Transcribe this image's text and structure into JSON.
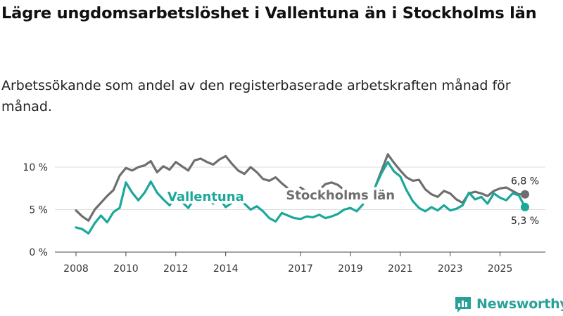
{
  "title": "Lägre ungdomsarbetslöshet i Vallentuna än i Stockholms län",
  "subtitle": "Arbetssökande som andel av den registerbaserade arbetskraften månad för månad.",
  "logo_text": "Newsworthy",
  "colors": {
    "vallentuna": "#1aa89a",
    "stockholm": "#6e6e6e",
    "grid": "#dddddd",
    "axis": "#333333"
  },
  "chart_data": {
    "type": "line",
    "title": "Lägre ungdomsarbetslöshet i Vallentuna än i Stockholms län",
    "xlabel": "",
    "ylabel": "",
    "xlim": [
      2008,
      2026.8
    ],
    "ylim": [
      0,
      12
    ],
    "x_ticks": [
      2008,
      2010,
      2012,
      2014,
      2017,
      2019,
      2021,
      2023,
      2025
    ],
    "y_ticks": [
      {
        "value": 0,
        "label": "0 %"
      },
      {
        "value": 5,
        "label": "5 %"
      },
      {
        "value": 10,
        "label": "10 %"
      }
    ],
    "series": [
      {
        "name": "Stockholms län",
        "label_text": "Stockholms län",
        "end_label": "6,8 %",
        "x": [
          2008.0,
          2008.25,
          2008.5,
          2008.75,
          2009.0,
          2009.25,
          2009.5,
          2009.75,
          2010.0,
          2010.25,
          2010.5,
          2010.75,
          2011.0,
          2011.25,
          2011.5,
          2011.75,
          2012.0,
          2012.25,
          2012.5,
          2012.75,
          2013.0,
          2013.25,
          2013.5,
          2013.75,
          2014.0,
          2014.25,
          2014.5,
          2014.75,
          2015.0,
          2015.25,
          2015.5,
          2015.75,
          2016.0,
          2016.25,
          2016.5,
          2016.75,
          2017.0,
          2017.25,
          2017.5,
          2017.75,
          2018.0,
          2018.25,
          2018.5,
          2018.75,
          2019.0,
          2019.25,
          2019.5,
          2019.75,
          2020.0,
          2020.25,
          2020.5,
          2020.75,
          2021.0,
          2021.25,
          2021.5,
          2021.75,
          2022.0,
          2022.25,
          2022.5,
          2022.75,
          2023.0,
          2023.25,
          2023.5,
          2023.75,
          2024.0,
          2024.25,
          2024.5,
          2024.75,
          2025.0,
          2025.25,
          2025.5,
          2025.75,
          2026.0
        ],
        "values": [
          4.9,
          4.2,
          3.7,
          5.0,
          5.8,
          6.6,
          7.3,
          9.0,
          9.9,
          9.6,
          10.0,
          10.2,
          10.7,
          9.4,
          10.1,
          9.7,
          10.6,
          10.1,
          9.6,
          10.8,
          11.0,
          10.6,
          10.3,
          10.9,
          11.3,
          10.4,
          9.6,
          9.2,
          10.0,
          9.4,
          8.6,
          8.4,
          8.8,
          8.1,
          7.5,
          6.7,
          7.6,
          7.1,
          6.5,
          7.3,
          8.0,
          8.2,
          7.9,
          7.3,
          6.6,
          6.1,
          7.2,
          null,
          7.7,
          9.6,
          11.5,
          10.5,
          9.6,
          8.8,
          8.4,
          8.5,
          7.4,
          6.8,
          6.5,
          7.2,
          6.9,
          6.2,
          5.8,
          6.9,
          7.1,
          6.9,
          6.6,
          7.2,
          7.5,
          7.6,
          7.2,
          6.8,
          6.8
        ]
      },
      {
        "name": "Vallentuna",
        "label_text": "Vallentuna",
        "end_label": "5,3 %",
        "x": [
          2008.0,
          2008.25,
          2008.5,
          2008.75,
          2009.0,
          2009.25,
          2009.5,
          2009.75,
          2010.0,
          2010.25,
          2010.5,
          2010.75,
          2011.0,
          2011.25,
          2011.5,
          2011.75,
          2012.0,
          2012.25,
          2012.5,
          2012.75,
          2013.0,
          2013.25,
          2013.5,
          2013.75,
          2014.0,
          2014.25,
          2014.5,
          2014.75,
          2015.0,
          2015.25,
          2015.5,
          2015.75,
          2016.0,
          2016.25,
          2016.5,
          2016.75,
          2017.0,
          2017.25,
          2017.5,
          2017.75,
          2018.0,
          2018.25,
          2018.5,
          2018.75,
          2019.0,
          2019.25,
          2019.5,
          2019.75,
          2020.0,
          2020.25,
          2020.5,
          2020.75,
          2021.0,
          2021.25,
          2021.5,
          2021.75,
          2022.0,
          2022.25,
          2022.5,
          2022.75,
          2023.0,
          2023.25,
          2023.5,
          2023.75,
          2024.0,
          2024.25,
          2024.5,
          2024.75,
          2025.0,
          2025.25,
          2025.5,
          2025.75,
          2026.0
        ],
        "values": [
          2.9,
          2.7,
          2.2,
          3.4,
          4.3,
          3.5,
          4.7,
          5.2,
          8.2,
          7.0,
          6.1,
          7.0,
          8.3,
          7.0,
          6.2,
          5.5,
          6.5,
          5.9,
          5.2,
          6.3,
          6.9,
          6.4,
          5.7,
          6.3,
          5.3,
          5.8,
          6.2,
          5.7,
          5.0,
          5.4,
          4.8,
          4.0,
          3.6,
          4.6,
          4.3,
          4.0,
          3.9,
          4.2,
          4.1,
          4.4,
          4.0,
          4.2,
          4.5,
          5.0,
          5.2,
          4.8,
          5.6,
          null,
          7.7,
          9.3,
          10.6,
          9.5,
          8.9,
          7.3,
          6.0,
          5.2,
          4.8,
          5.3,
          4.9,
          5.5,
          4.9,
          5.1,
          5.5,
          7.0,
          6.2,
          6.5,
          5.7,
          6.9,
          6.4,
          6.1,
          6.9,
          6.7,
          5.3
        ]
      }
    ]
  }
}
